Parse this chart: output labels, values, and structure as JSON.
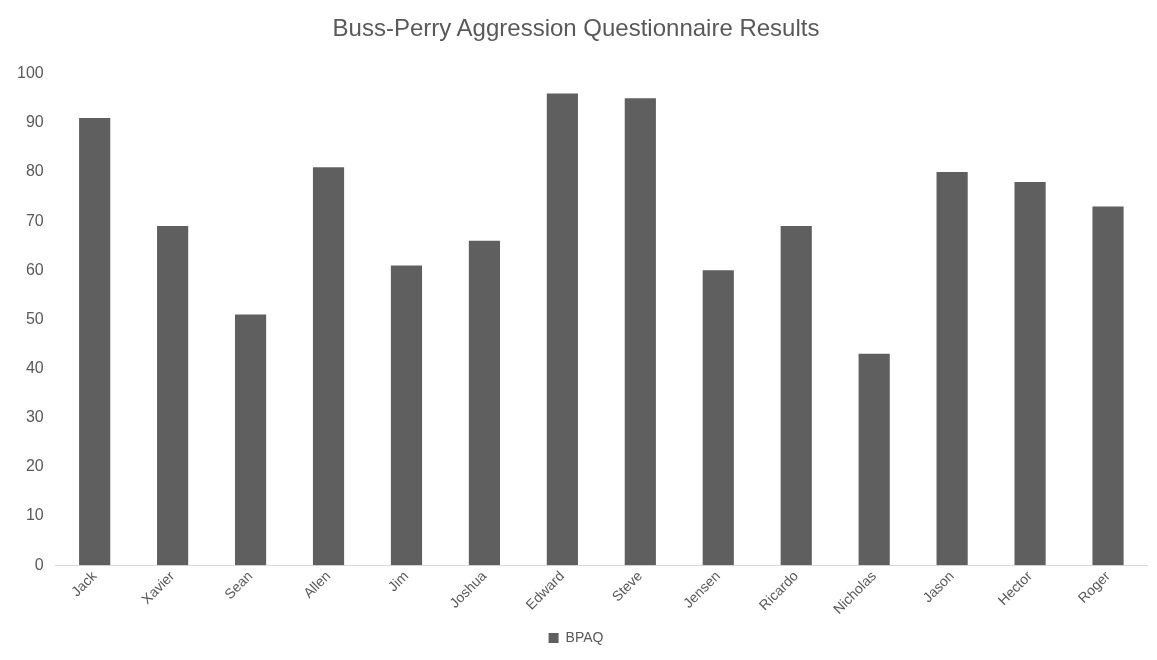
{
  "chart_data": {
    "type": "bar",
    "title": "Buss-Perry Aggression Questionnaire Results",
    "categories": [
      "Jack",
      "Xavier",
      "Sean",
      "Allen",
      "Jim",
      "Joshua",
      "Edward",
      "Steve",
      "Jensen",
      "Ricardo",
      "Nicholas",
      "Jason",
      "Hector",
      "Roger"
    ],
    "series": [
      {
        "name": "BPAQ",
        "color": "#5f5f5f",
        "values": [
          91,
          69,
          51,
          81,
          61,
          66,
          96,
          95,
          60,
          69,
          43,
          80,
          78,
          73
        ]
      }
    ],
    "ylim": [
      0,
      100
    ],
    "yticks": [
      0,
      10,
      20,
      30,
      40,
      50,
      60,
      70,
      80,
      90,
      100
    ],
    "grid": false,
    "legend": "bottom"
  }
}
